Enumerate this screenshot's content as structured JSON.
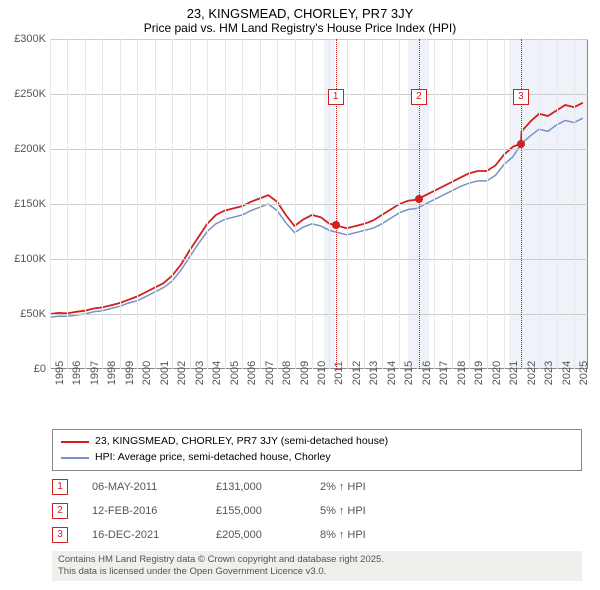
{
  "title": "23, KINGSMEAD, CHORLEY, PR7 3JY",
  "subtitle": "Price paid vs. HM Land Registry's House Price Index (HPI)",
  "chart": {
    "type": "line",
    "background_color": "#ffffff",
    "grid_color_v": "#e8e8e8",
    "grid_color_h": "#cccccc",
    "border_color": "#888888",
    "xlim": [
      1995,
      2025.8
    ],
    "ylim": [
      0,
      300000
    ],
    "ytick_step": 50000,
    "yticks": [
      "£0",
      "£50K",
      "£100K",
      "£150K",
      "£200K",
      "£250K",
      "£300K"
    ],
    "xticks": [
      1995,
      1996,
      1997,
      1998,
      1999,
      2000,
      2001,
      2002,
      2003,
      2004,
      2005,
      2006,
      2007,
      2008,
      2009,
      2010,
      2011,
      2012,
      2013,
      2014,
      2015,
      2016,
      2017,
      2018,
      2019,
      2020,
      2021,
      2022,
      2023,
      2024,
      2025
    ],
    "bands": [
      {
        "from": 2010.7,
        "to": 2011.3,
        "color": "rgba(120,150,200,0.12)"
      },
      {
        "from": 2015.5,
        "to": 2016.7,
        "color": "rgba(120,150,200,0.12)"
      },
      {
        "from": 2021.3,
        "to": 2025.8,
        "color": "rgba(120,150,200,0.12)"
      }
    ],
    "series": [
      {
        "name": "23, KINGSMEAD, CHORLEY, PR7 3JY (semi-detached house)",
        "color": "#d02020",
        "line_width": 1.8,
        "data": [
          [
            1995.0,
            50000
          ],
          [
            1995.5,
            51000
          ],
          [
            1996.0,
            50500
          ],
          [
            1996.5,
            52000
          ],
          [
            1997.0,
            53000
          ],
          [
            1997.5,
            55000
          ],
          [
            1998.0,
            56000
          ],
          [
            1998.5,
            58000
          ],
          [
            1999.0,
            60000
          ],
          [
            1999.5,
            63000
          ],
          [
            2000.0,
            66000
          ],
          [
            2000.5,
            70000
          ],
          [
            2001.0,
            74000
          ],
          [
            2001.5,
            78000
          ],
          [
            2002.0,
            85000
          ],
          [
            2002.5,
            95000
          ],
          [
            2003.0,
            108000
          ],
          [
            2003.5,
            120000
          ],
          [
            2004.0,
            132000
          ],
          [
            2004.5,
            140000
          ],
          [
            2005.0,
            144000
          ],
          [
            2005.5,
            146000
          ],
          [
            2006.0,
            148000
          ],
          [
            2006.5,
            152000
          ],
          [
            2007.0,
            155000
          ],
          [
            2007.5,
            158000
          ],
          [
            2008.0,
            152000
          ],
          [
            2008.5,
            140000
          ],
          [
            2009.0,
            130000
          ],
          [
            2009.5,
            136000
          ],
          [
            2010.0,
            140000
          ],
          [
            2010.5,
            138000
          ],
          [
            2011.0,
            132000
          ],
          [
            2011.35,
            131000
          ],
          [
            2011.5,
            130000
          ],
          [
            2012.0,
            128000
          ],
          [
            2012.5,
            130000
          ],
          [
            2013.0,
            132000
          ],
          [
            2013.5,
            135000
          ],
          [
            2014.0,
            140000
          ],
          [
            2014.5,
            145000
          ],
          [
            2015.0,
            150000
          ],
          [
            2015.5,
            153000
          ],
          [
            2016.0,
            154000
          ],
          [
            2016.12,
            155000
          ],
          [
            2016.5,
            158000
          ],
          [
            2017.0,
            162000
          ],
          [
            2017.5,
            166000
          ],
          [
            2018.0,
            170000
          ],
          [
            2018.5,
            174000
          ],
          [
            2019.0,
            178000
          ],
          [
            2019.5,
            180000
          ],
          [
            2020.0,
            180000
          ],
          [
            2020.5,
            185000
          ],
          [
            2021.0,
            195000
          ],
          [
            2021.5,
            202000
          ],
          [
            2021.96,
            205000
          ],
          [
            2022.0,
            216000
          ],
          [
            2022.5,
            225000
          ],
          [
            2023.0,
            232000
          ],
          [
            2023.5,
            230000
          ],
          [
            2024.0,
            235000
          ],
          [
            2024.5,
            240000
          ],
          [
            2025.0,
            238000
          ],
          [
            2025.5,
            242000
          ]
        ]
      },
      {
        "name": "HPI: Average price, semi-detached house, Chorley",
        "color": "#7a93c4",
        "line_width": 1.5,
        "data": [
          [
            1995.0,
            47000
          ],
          [
            1995.5,
            48000
          ],
          [
            1996.0,
            48000
          ],
          [
            1996.5,
            49000
          ],
          [
            1997.0,
            50000
          ],
          [
            1997.5,
            52000
          ],
          [
            1998.0,
            53000
          ],
          [
            1998.5,
            55000
          ],
          [
            1999.0,
            57000
          ],
          [
            1999.5,
            60000
          ],
          [
            2000.0,
            62000
          ],
          [
            2000.5,
            66000
          ],
          [
            2001.0,
            70000
          ],
          [
            2001.5,
            74000
          ],
          [
            2002.0,
            80000
          ],
          [
            2002.5,
            90000
          ],
          [
            2003.0,
            102000
          ],
          [
            2003.5,
            114000
          ],
          [
            2004.0,
            125000
          ],
          [
            2004.5,
            132000
          ],
          [
            2005.0,
            136000
          ],
          [
            2005.5,
            138000
          ],
          [
            2006.0,
            140000
          ],
          [
            2006.5,
            144000
          ],
          [
            2007.0,
            147000
          ],
          [
            2007.5,
            150000
          ],
          [
            2008.0,
            144000
          ],
          [
            2008.5,
            133000
          ],
          [
            2009.0,
            124000
          ],
          [
            2009.5,
            129000
          ],
          [
            2010.0,
            132000
          ],
          [
            2010.5,
            130000
          ],
          [
            2011.0,
            126000
          ],
          [
            2011.5,
            124000
          ],
          [
            2012.0,
            122000
          ],
          [
            2012.5,
            124000
          ],
          [
            2013.0,
            126000
          ],
          [
            2013.5,
            128000
          ],
          [
            2014.0,
            132000
          ],
          [
            2014.5,
            137000
          ],
          [
            2015.0,
            142000
          ],
          [
            2015.5,
            145000
          ],
          [
            2016.0,
            146000
          ],
          [
            2016.5,
            150000
          ],
          [
            2017.0,
            154000
          ],
          [
            2017.5,
            158000
          ],
          [
            2018.0,
            162000
          ],
          [
            2018.5,
            166000
          ],
          [
            2019.0,
            169000
          ],
          [
            2019.5,
            171000
          ],
          [
            2020.0,
            171000
          ],
          [
            2020.5,
            176000
          ],
          [
            2021.0,
            186000
          ],
          [
            2021.5,
            193000
          ],
          [
            2022.0,
            205000
          ],
          [
            2022.5,
            212000
          ],
          [
            2023.0,
            218000
          ],
          [
            2023.5,
            216000
          ],
          [
            2024.0,
            222000
          ],
          [
            2024.5,
            226000
          ],
          [
            2025.0,
            224000
          ],
          [
            2025.5,
            228000
          ]
        ]
      }
    ],
    "markers": [
      {
        "n": "1",
        "x": 2011.35,
        "y": 131000,
        "label_top": 50
      },
      {
        "n": "2",
        "x": 2016.12,
        "y": 155000,
        "label_top": 50
      },
      {
        "n": "3",
        "x": 2021.96,
        "y": 205000,
        "label_top": 50
      }
    ]
  },
  "legend": {
    "items": [
      {
        "color": "#d02020",
        "label": "23, KINGSMEAD, CHORLEY, PR7 3JY (semi-detached house)"
      },
      {
        "color": "#7a93c4",
        "label": "HPI: Average price, semi-detached house, Chorley"
      }
    ]
  },
  "events": [
    {
      "n": "1",
      "date": "06-MAY-2011",
      "price": "£131,000",
      "pct": "2%",
      "dir": "up",
      "suffix": "HPI"
    },
    {
      "n": "2",
      "date": "12-FEB-2016",
      "price": "£155,000",
      "pct": "5%",
      "dir": "up",
      "suffix": "HPI"
    },
    {
      "n": "3",
      "date": "16-DEC-2021",
      "price": "£205,000",
      "pct": "8%",
      "dir": "up",
      "suffix": "HPI"
    }
  ],
  "credits": {
    "line1": "Contains HM Land Registry data © Crown copyright and database right 2025.",
    "line2": "This data is licensed under the Open Government Licence v3.0."
  }
}
